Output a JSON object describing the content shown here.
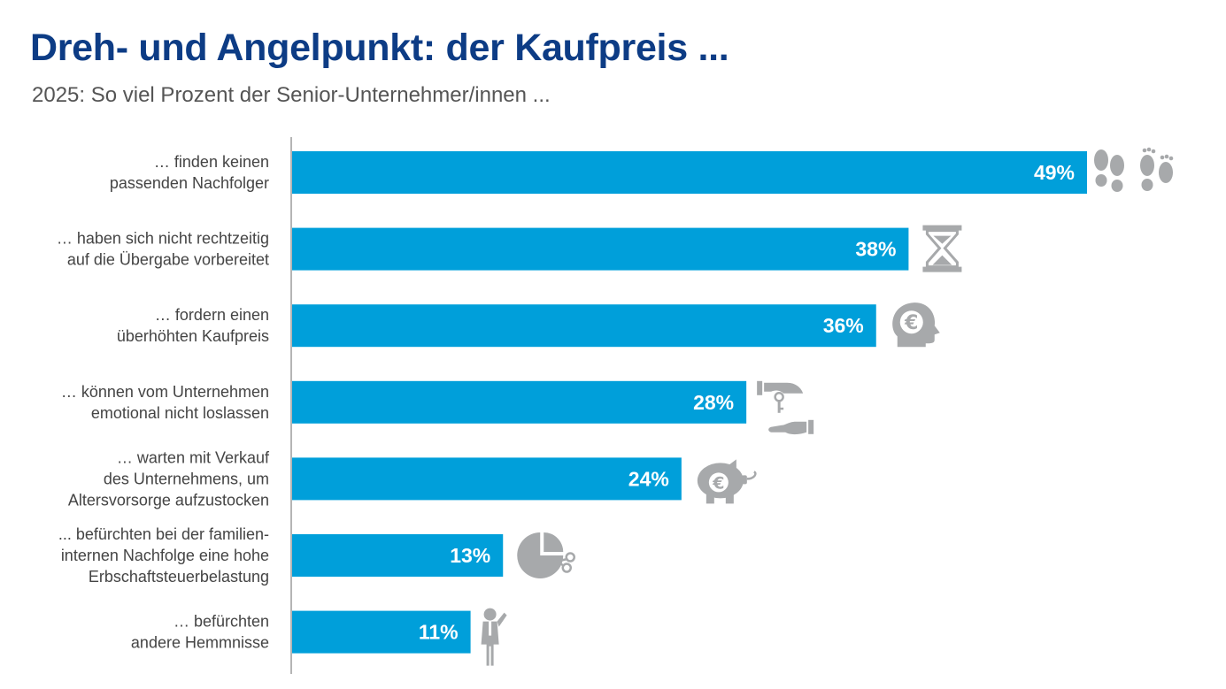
{
  "header": {
    "title": "Dreh- und Angelpunkt: der Kaufpreis ...",
    "subtitle": "2025: So viel Prozent der Senior-Unternehmer/innen ..."
  },
  "colors": {
    "bar": "#009fda",
    "title": "#0d3c85",
    "icon": "#a7a9ab",
    "axis": "#b5b5b5"
  },
  "chart_data": {
    "type": "bar",
    "orientation": "horizontal",
    "categories": [
      [
        "… finden keinen",
        "passenden Nachfolger"
      ],
      [
        "… haben sich nicht rechtzeitig",
        "auf die Übergabe vorbereitet"
      ],
      [
        "… fordern einen",
        "überhöhten Kaufpreis"
      ],
      [
        "… können vom Unternehmen",
        "emotional nicht loslassen"
      ],
      [
        "… warten mit Verkauf",
        "des Unternehmens, um",
        "Altersvorsorge aufzustocken"
      ],
      [
        "... befürchten bei der familien-",
        "internen Nachfolge eine hohe",
        "Erbschaftsteuerbelastung"
      ],
      [
        "… befürchten",
        "andere Hemmnisse"
      ]
    ],
    "values": [
      49,
      38,
      36,
      28,
      24,
      13,
      11
    ],
    "value_labels": [
      "49%",
      "38%",
      "36%",
      "28%",
      "24%",
      "13%",
      "11%"
    ],
    "icons": [
      "footprints-icon",
      "hourglass-icon",
      "head-euro-icon",
      "key-handover-icon",
      "piggy-bank-euro-icon",
      "pie-chart-scissors-icon",
      "thinking-man-icon"
    ],
    "xlim": [
      0,
      49
    ],
    "grid": false,
    "legend": "none"
  }
}
